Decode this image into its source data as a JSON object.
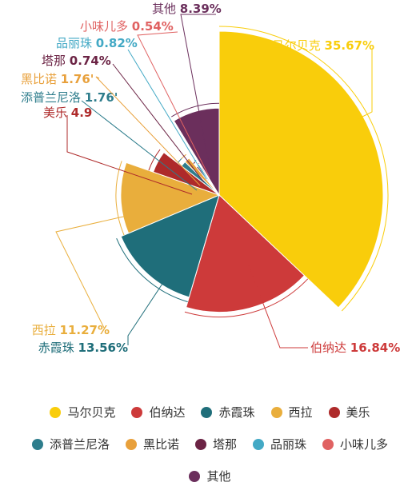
{
  "chart_data": {
    "type": "pie",
    "variant": "rose",
    "categories": [
      "马尔贝克",
      "伯纳达",
      "赤霞珠",
      "西拉",
      "美乐",
      "添普兰尼洛",
      "黑比诺",
      "塔那",
      "品丽珠",
      "小味儿多",
      "其他"
    ],
    "values": [
      35.67,
      16.84,
      13.56,
      11.27,
      4.9,
      1.76,
      1.76,
      0.74,
      0.82,
      0.54,
      8.39
    ],
    "value_labels": [
      "35.67%",
      "16.84%",
      "13.56%",
      "11.27%",
      "4.9",
      "1.76'",
      "1.76'",
      "0.74%",
      "0.82%",
      "0.54%",
      "8.39%"
    ],
    "colors": [
      "#F9CD0B",
      "#CD3A3A",
      "#1F6E7A",
      "#E9AE3C",
      "#AE2A2A",
      "#2E7D8C",
      "#E8A03B",
      "#6B2344",
      "#43A9C5",
      "#E06262",
      "#6B2F5C"
    ],
    "legend_position": "bottom"
  },
  "legend_rows": [
    [
      "马尔贝克",
      "伯纳达",
      "赤霞珠",
      "西拉",
      "美乐"
    ],
    [
      "添普兰尼洛",
      "黑比诺",
      "塔那",
      "品丽珠",
      "小味儿多"
    ],
    [
      "其他"
    ]
  ]
}
